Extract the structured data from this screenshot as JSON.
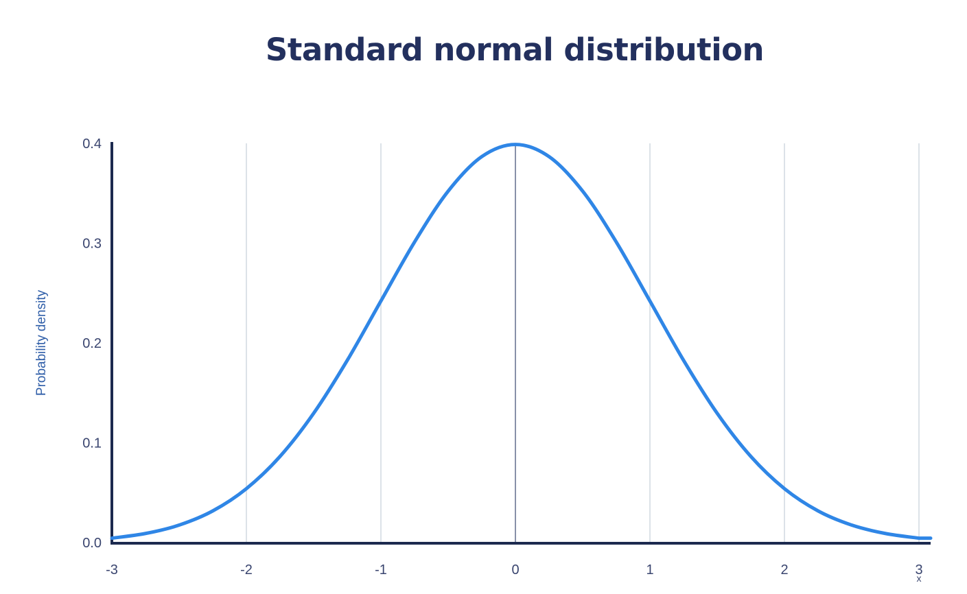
{
  "chart_data": {
    "type": "line",
    "title": "Standard normal distribution",
    "xlabel": "x",
    "ylabel": "Probability density",
    "xlim": [
      -3,
      3
    ],
    "ylim": [
      0,
      0.4
    ],
    "x_ticks": [
      -3,
      -2,
      -1,
      0,
      1,
      2,
      3
    ],
    "x_tick_labels": [
      "-3",
      "-2",
      "-1",
      "0",
      "1",
      "2",
      "3"
    ],
    "y_ticks": [
      0,
      0.1,
      0.2,
      0.3,
      0.4
    ],
    "y_tick_labels": [
      "0.0",
      "0.1",
      "0.2",
      "0.3",
      "0.4"
    ],
    "grid": "vertical",
    "series": [
      {
        "x": [
          -3.0,
          -2.75,
          -2.5,
          -2.25,
          -2.0,
          -1.75,
          -1.5,
          -1.25,
          -1.0,
          -0.75,
          -0.5,
          -0.25,
          0.0,
          0.25,
          0.5,
          0.75,
          1.0,
          1.25,
          1.5,
          1.75,
          2.0,
          2.25,
          2.5,
          2.75,
          3.0
        ],
        "y": [
          0.0044,
          0.0091,
          0.0175,
          0.0317,
          0.054,
          0.0863,
          0.1295,
          0.1826,
          0.242,
          0.3011,
          0.3521,
          0.3867,
          0.3989,
          0.3867,
          0.3521,
          0.3011,
          0.242,
          0.1826,
          0.1295,
          0.0863,
          0.054,
          0.0317,
          0.0175,
          0.0091,
          0.0044
        ]
      }
    ],
    "colors": {
      "curve": "#2f86e6",
      "axis": "#1c2a4f",
      "grid": "#d4dbe3",
      "center_line": "#6b7593",
      "title": "#23305e"
    }
  }
}
